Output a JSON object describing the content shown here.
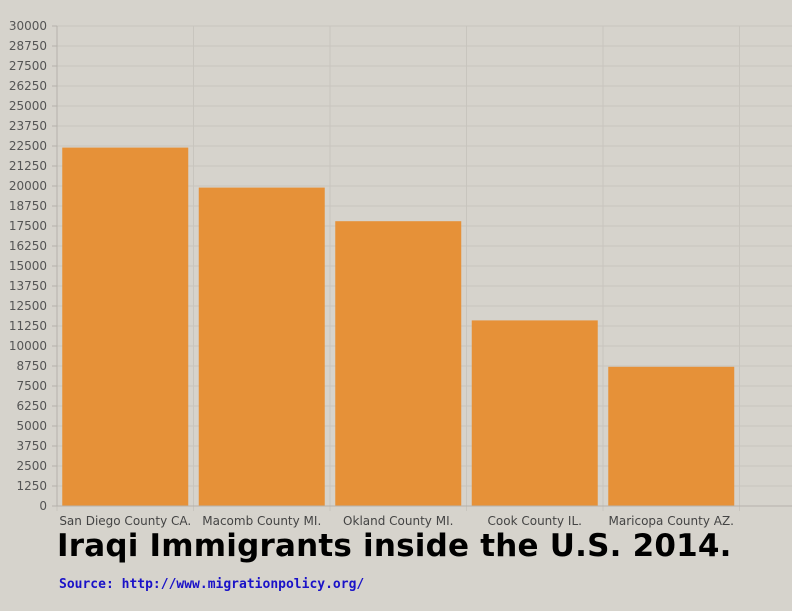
{
  "chart_data": {
    "type": "bar",
    "categories": [
      "San Diego County CA.",
      "Macomb County MI.",
      "Okland County MI.",
      "Cook County IL.",
      "Maricopa County AZ."
    ],
    "values": [
      22400,
      19900,
      17800,
      11600,
      8700
    ],
    "title": "Iraqi Immigrants inside the U.S. 2014.",
    "source": "Source: http://www.migrationpolicy.org/",
    "ylim": [
      0,
      30000
    ],
    "yticks": [
      0,
      1250,
      2500,
      3750,
      5000,
      6250,
      7500,
      8750,
      10000,
      11250,
      12500,
      13750,
      15000,
      16250,
      17500,
      18750,
      20000,
      21250,
      22500,
      23750,
      25000,
      26250,
      27500,
      28750,
      30000
    ],
    "grid": true,
    "colors": {
      "bar": "#e69138",
      "background": "#d6d3cc",
      "grid": "#c8c5be",
      "axis": "#b5b2ab",
      "source": "#1a12c8"
    }
  }
}
